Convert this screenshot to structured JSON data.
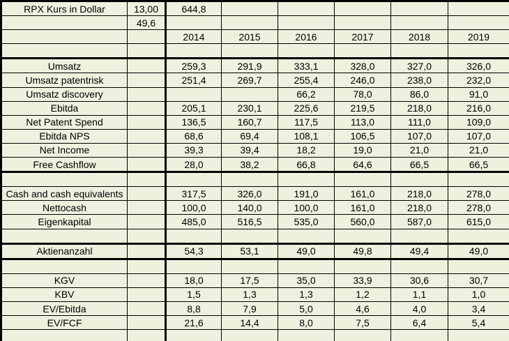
{
  "app": {
    "type": "spreadsheet-financial-table",
    "background_color": "#edf1de",
    "grid_color": "#000000",
    "text_color": "#000000"
  },
  "table": {
    "title": "RPX Kurs in Dollar",
    "years": [
      "2014",
      "2015",
      "2016",
      "2017",
      "2018",
      "2019"
    ],
    "rows": [
      {
        "cells": [
          "RPX Kurs in Dollar",
          "13,00",
          "644,8",
          "",
          "",
          "",
          "",
          ""
        ],
        "thick_bottom": false
      },
      {
        "cells": [
          "",
          "49,6",
          "",
          "",
          "",
          "",
          "",
          ""
        ],
        "thick_bottom": false
      },
      {
        "cells": [
          "",
          "",
          "2014",
          "2015",
          "2016",
          "2017",
          "2018",
          "2019"
        ],
        "thick_bottom": false
      },
      {
        "cells": [
          "",
          "",
          "",
          "",
          "",
          "",
          "",
          ""
        ],
        "thick_bottom": true
      },
      {
        "cells": [
          "Umsatz",
          "",
          "259,3",
          "291,9",
          "333,1",
          "328,0",
          "327,0",
          "326,0"
        ],
        "thick_bottom": false
      },
      {
        "cells": [
          "Umsatz patentrisk",
          "",
          "251,4",
          "269,7",
          "255,4",
          "246,0",
          "238,0",
          "232,0"
        ],
        "thick_bottom": false
      },
      {
        "cells": [
          "Umsatz discovery",
          "",
          "",
          "",
          "66,2",
          "78,0",
          "86,0",
          "91,0"
        ],
        "thick_bottom": false
      },
      {
        "cells": [
          "Ebitda",
          "",
          "205,1",
          "230,1",
          "225,6",
          "219,5",
          "218,0",
          "216,0"
        ],
        "thick_bottom": false
      },
      {
        "cells": [
          "Net Patent Spend",
          "",
          "136,5",
          "160,7",
          "117,5",
          "113,0",
          "111,0",
          "109,0"
        ],
        "thick_bottom": false
      },
      {
        "cells": [
          "Ebitda NPS",
          "",
          "68,6",
          "69,4",
          "108,1",
          "106,5",
          "107,0",
          "107,0"
        ],
        "thick_bottom": false
      },
      {
        "cells": [
          "Net Income",
          "",
          "39,3",
          "39,4",
          "18,2",
          "19,0",
          "21,0",
          "21,0"
        ],
        "thick_bottom": false
      },
      {
        "cells": [
          "Free Cashflow",
          "",
          "28,0",
          "38,2",
          "66,8",
          "64,6",
          "66,5",
          "66,5"
        ],
        "thick_bottom": true
      },
      {
        "cells": [
          "",
          "",
          "",
          "",
          "",
          "",
          "",
          ""
        ],
        "thick_bottom": false
      },
      {
        "cells": [
          "Cash and cash equivalents",
          "",
          "317,5",
          "326,0",
          "191,0",
          "161,0",
          "218,0",
          "278,0"
        ],
        "thick_bottom": false
      },
      {
        "cells": [
          "Nettocash",
          "",
          "100,0",
          "140,0",
          "100,0",
          "161,0",
          "218,0",
          "278,0"
        ],
        "thick_bottom": false
      },
      {
        "cells": [
          "Eigenkapital",
          "",
          "485,0",
          "516,5",
          "535,0",
          "560,0",
          "587,0",
          "615,0"
        ],
        "thick_bottom": false
      },
      {
        "cells": [
          "",
          "",
          "",
          "",
          "",
          "",
          "",
          ""
        ],
        "thick_bottom": true
      },
      {
        "cells": [
          "Aktienanzahl",
          "",
          "54,3",
          "53,1",
          "49,0",
          "49,8",
          "49,4",
          "49,0"
        ],
        "thick_bottom": true
      },
      {
        "cells": [
          "",
          "",
          "",
          "",
          "",
          "",
          "",
          ""
        ],
        "thick_bottom": false
      },
      {
        "cells": [
          "KGV",
          "",
          "18,0",
          "17,5",
          "35,0",
          "33,9",
          "30,6",
          "30,7"
        ],
        "thick_bottom": false
      },
      {
        "cells": [
          "KBV",
          "",
          "1,5",
          "1,3",
          "1,3",
          "1,2",
          "1,1",
          "1,0"
        ],
        "thick_bottom": false
      },
      {
        "cells": [
          "EV/Ebitda",
          "",
          "8,8",
          "7,9",
          "5,0",
          "4,6",
          "4,0",
          "3,4"
        ],
        "thick_bottom": false
      },
      {
        "cells": [
          "EV/FCF",
          "",
          "21,6",
          "14,4",
          "8,0",
          "7,5",
          "6,4",
          "5,4"
        ],
        "thick_bottom": false
      },
      {
        "cells": [
          "",
          "",
          "",
          "",
          "",
          "",
          "",
          ""
        ],
        "thick_bottom": false
      }
    ]
  }
}
